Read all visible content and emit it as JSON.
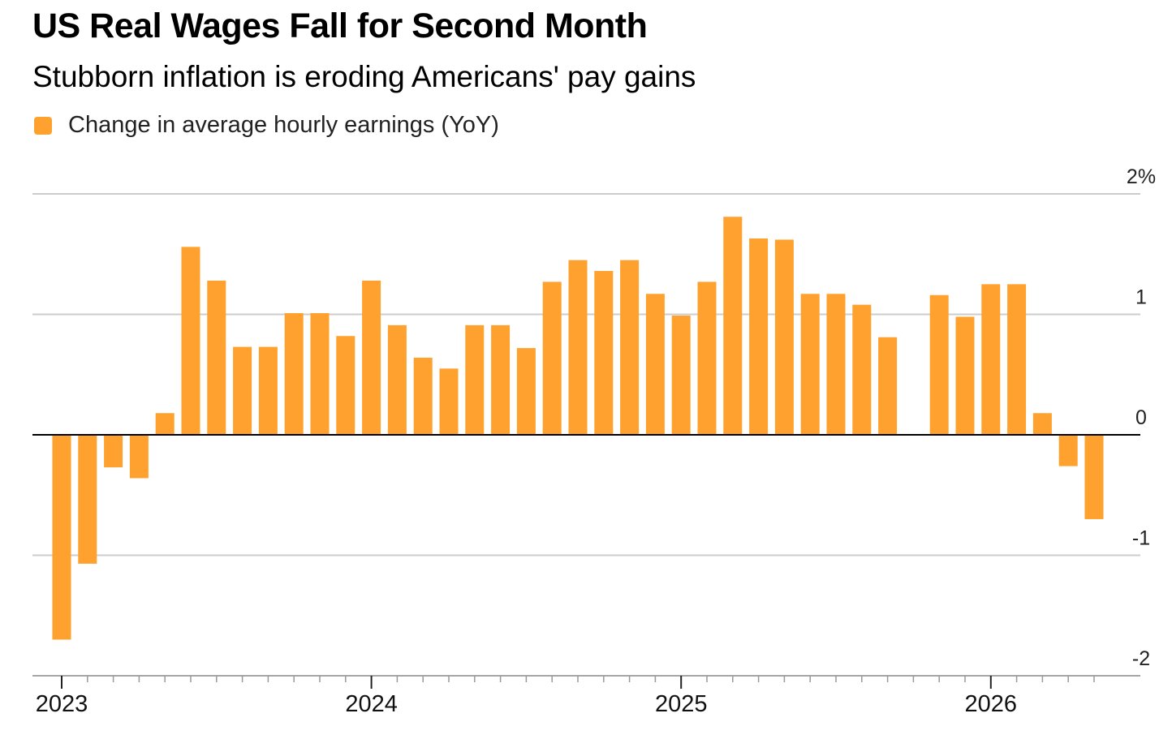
{
  "header": {
    "title": "US Real Wages Fall for Second Month",
    "subtitle": "Stubborn inflation is eroding Americans' pay gains"
  },
  "legend": {
    "label": "Change in average hourly earnings (YoY)",
    "color": "#FFA12E"
  },
  "colors": {
    "bar": "#FFA12E",
    "grid": "#cccccc",
    "zero_line": "#000000",
    "axis": "#999999"
  },
  "chart_data": {
    "type": "bar",
    "series": [
      {
        "name": "Change in average hourly earnings (YoY)",
        "start": "2023-01",
        "values": [
          -1.7,
          -1.07,
          -0.27,
          -0.36,
          0.18,
          1.56,
          1.28,
          0.73,
          0.73,
          1.01,
          1.01,
          0.82,
          1.28,
          0.91,
          0.64,
          0.55,
          0.91,
          0.91,
          0.72,
          1.27,
          1.45,
          1.36,
          1.45,
          1.17,
          0.99,
          1.27,
          1.81,
          1.63,
          1.62,
          1.17,
          1.17,
          1.08,
          0.81,
          null,
          1.16,
          0.98,
          1.25,
          1.25,
          0.18,
          -0.26,
          -0.7
        ]
      }
    ],
    "y_ticks": [
      "2%",
      "1",
      "0",
      "-1",
      "-2"
    ],
    "y_tick_values": [
      2,
      1,
      0,
      -1,
      -2
    ],
    "ylim": [
      -2,
      2
    ],
    "x_tick_labels": [
      "2023",
      "2024",
      "2025",
      "2026"
    ],
    "y_axis_side": "right",
    "grid": true
  }
}
